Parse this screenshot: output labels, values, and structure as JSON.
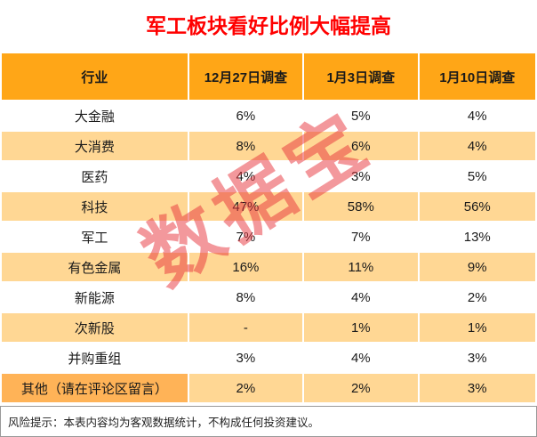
{
  "title": "军工板块看好比例大幅提高",
  "watermark": "数据宝",
  "disclaimer": "风险提示：本表内容均为客观数据统计，不构成任何投资建议。",
  "colors": {
    "title_color": "#FF0000",
    "header_bg": "#FFA617",
    "alt_row_bg": "#FFD794",
    "other_label_bg": "#FFB357",
    "watermark_color": "#E8333C"
  },
  "chart_data": {
    "type": "table",
    "title": "军工板块看好比例大幅提高",
    "columns": [
      "行业",
      "12月27日调查",
      "1月3日调查",
      "1月10日调查"
    ],
    "rows": [
      {
        "industry": "大金融",
        "values": [
          "6%",
          "5%",
          "4%"
        ]
      },
      {
        "industry": "大消费",
        "values": [
          "8%",
          "6%",
          "4%"
        ]
      },
      {
        "industry": "医药",
        "values": [
          "4%",
          "3%",
          "5%"
        ]
      },
      {
        "industry": "科技",
        "values": [
          "47%",
          "58%",
          "56%"
        ]
      },
      {
        "industry": "军工",
        "values": [
          "7%",
          "7%",
          "13%"
        ]
      },
      {
        "industry": "有色金属",
        "values": [
          "16%",
          "11%",
          "9%"
        ]
      },
      {
        "industry": "新能源",
        "values": [
          "8%",
          "4%",
          "2%"
        ]
      },
      {
        "industry": "次新股",
        "values": [
          "-",
          "1%",
          "1%"
        ]
      },
      {
        "industry": "并购重组",
        "values": [
          "3%",
          "4%",
          "3%"
        ]
      },
      {
        "industry": "其他（请在评论区留言）",
        "values": [
          "2%",
          "2%",
          "3%"
        ]
      }
    ],
    "layout": {
      "alternating_rows": true,
      "header_style": "orange",
      "grid": "white-lines"
    }
  }
}
